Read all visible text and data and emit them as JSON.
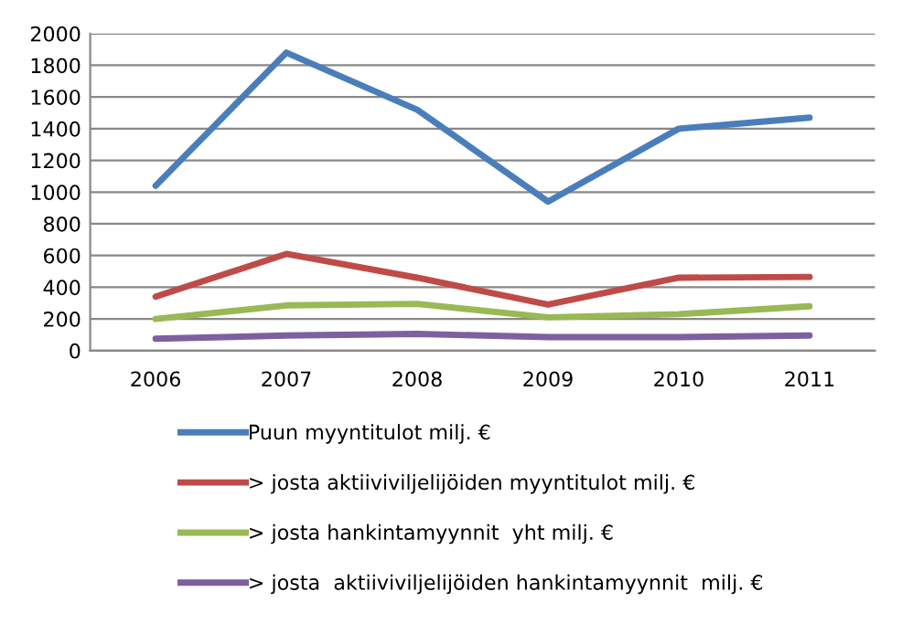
{
  "chart_data": {
    "type": "line",
    "categories": [
      "2006",
      "2007",
      "2008",
      "2009",
      "2010",
      "2011"
    ],
    "series": [
      {
        "name": "Puun myyntitulot milj. €",
        "color": "#4a7ebb",
        "values": [
          1040,
          1880,
          1520,
          940,
          1400,
          1470
        ]
      },
      {
        "name": "> josta aktiiviviljelijöiden myyntitulot milj. €",
        "color": "#be4b48",
        "values": [
          340,
          610,
          460,
          290,
          460,
          465
        ]
      },
      {
        "name": "> josta hankintamyynnit  yht milj. €",
        "color": "#98b954",
        "values": [
          200,
          285,
          295,
          210,
          230,
          280
        ]
      },
      {
        "name": "> josta  aktiiviviljelijöiden hankintamyynnit  milj. €",
        "color": "#7d60a0",
        "values": [
          75,
          95,
          105,
          85,
          85,
          95
        ]
      }
    ],
    "ylim": [
      0,
      2000
    ],
    "yticks": [
      0,
      200,
      400,
      600,
      800,
      1000,
      1200,
      1400,
      1600,
      1800,
      2000
    ],
    "grid": "y",
    "legend": "bottom",
    "marker": "none",
    "line_style": "solid"
  }
}
